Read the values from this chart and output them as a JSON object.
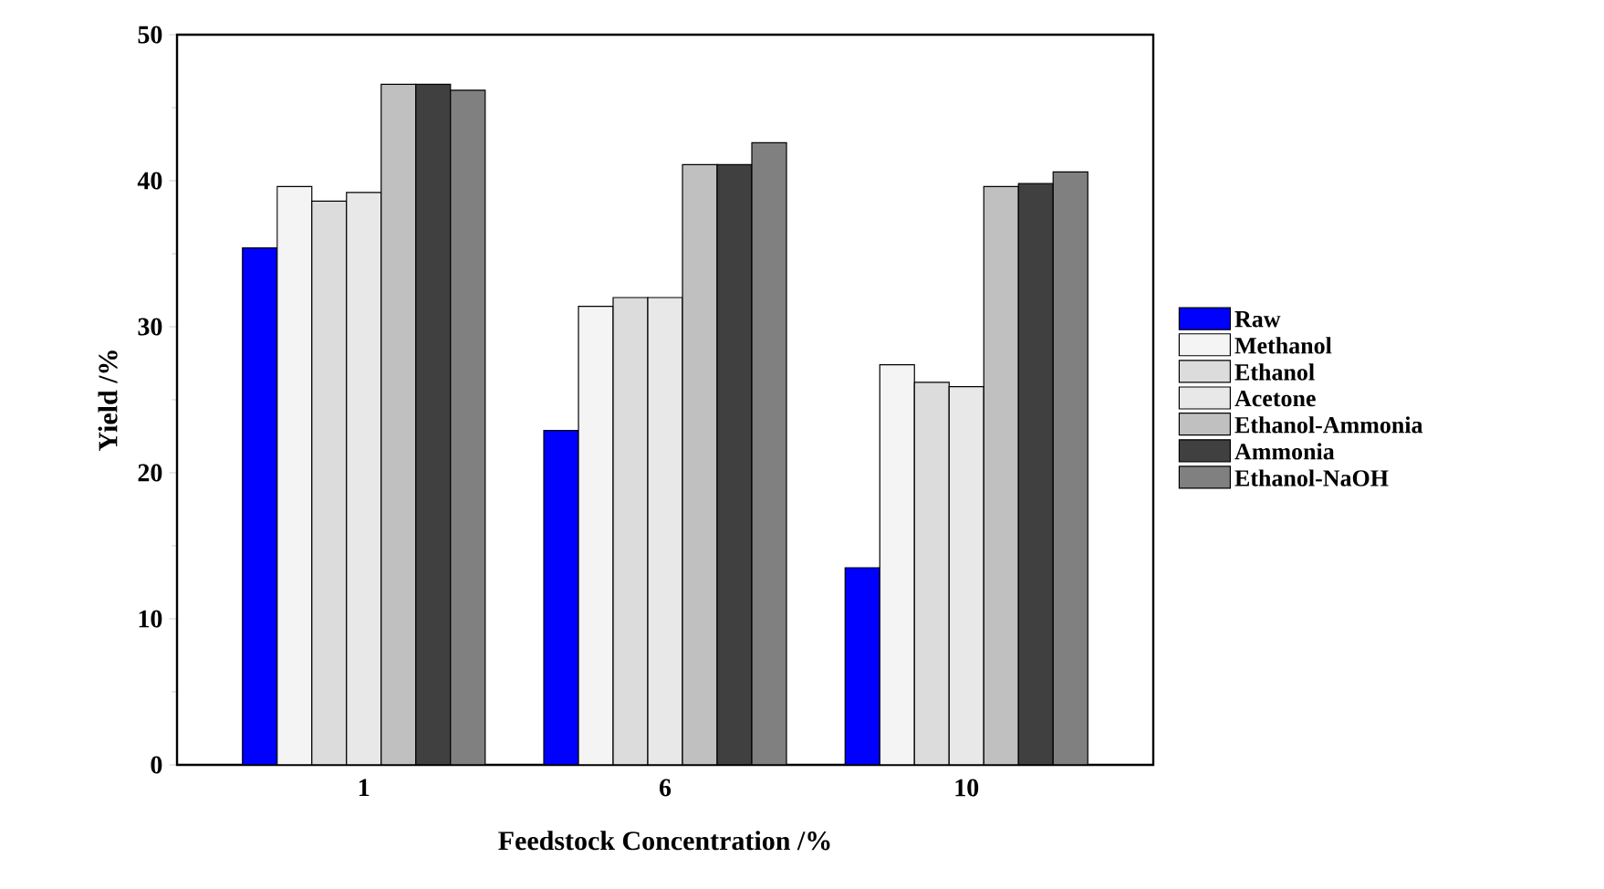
{
  "chart_data": {
    "type": "bar",
    "xlabel": "Feedstock Concentration /%",
    "ylabel": "Yield /%",
    "categories": [
      "1",
      "6",
      "10"
    ],
    "ylim": [
      0,
      50
    ],
    "yticks": [
      0,
      10,
      20,
      30,
      40,
      50
    ],
    "legend": "right",
    "grid": false,
    "series": [
      {
        "name": "Raw",
        "color": "#0000ff",
        "values": [
          35.4,
          22.9,
          13.5
        ]
      },
      {
        "name": "Methanol",
        "color": "#f4f4f4",
        "values": [
          39.6,
          31.4,
          27.4
        ]
      },
      {
        "name": "Ethanol",
        "color": "#dcdcdc",
        "values": [
          38.6,
          32.0,
          26.2
        ]
      },
      {
        "name": "Acetone",
        "color": "#e8e8e8",
        "values": [
          39.2,
          32.0,
          25.9
        ]
      },
      {
        "name": "Ethanol-Ammonia",
        "color": "#c0c0c0",
        "values": [
          46.6,
          41.1,
          39.6
        ]
      },
      {
        "name": "Ammonia",
        "color": "#404040",
        "values": [
          46.6,
          41.1,
          39.8
        ]
      },
      {
        "name": "Ethanol-NaOH",
        "color": "#808080",
        "values": [
          46.2,
          42.6,
          40.6
        ]
      }
    ]
  }
}
